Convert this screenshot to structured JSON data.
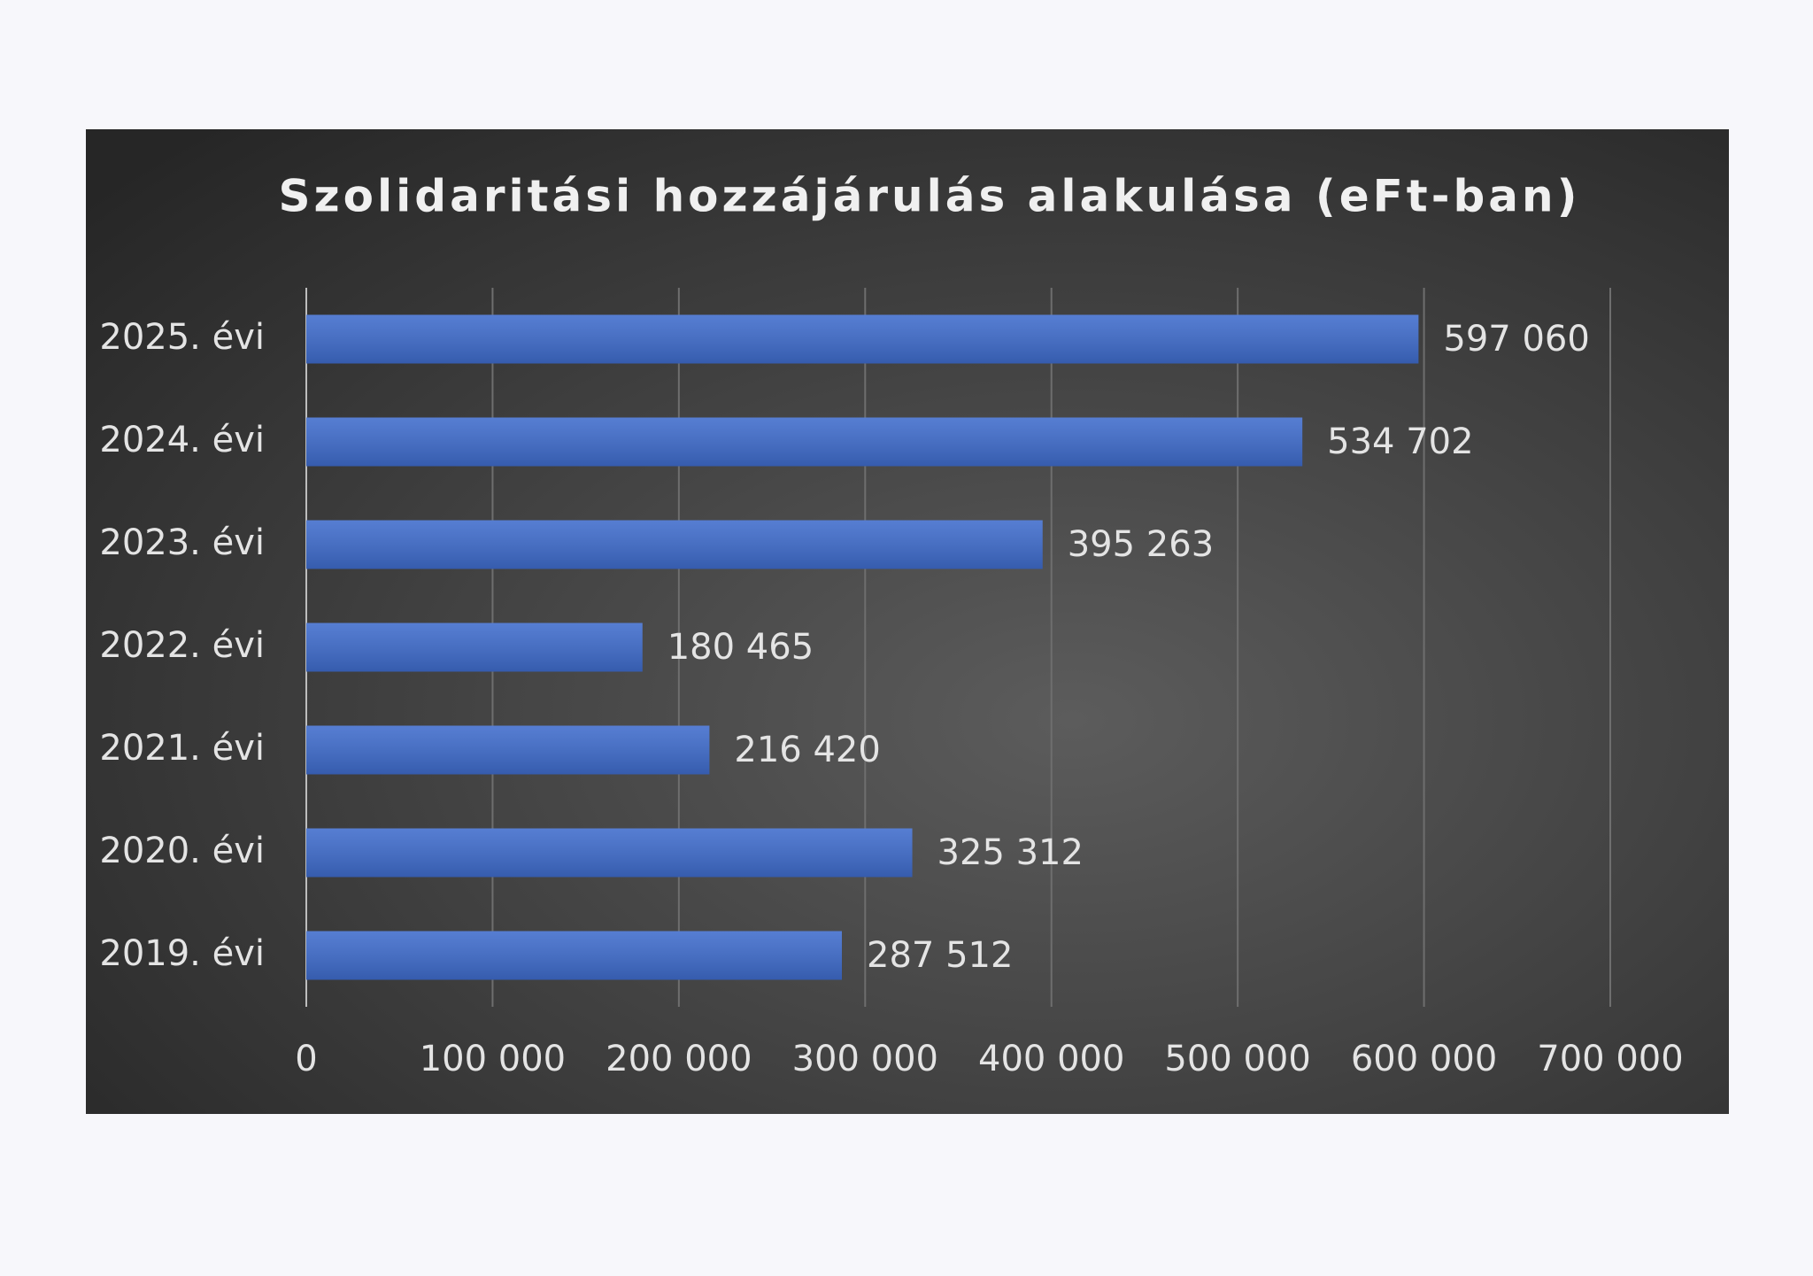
{
  "chart_data": {
    "type": "bar",
    "orientation": "horizontal",
    "title": "Szolidaritási hozzájárulás alakulása (eFt-ban)",
    "categories": [
      "2025. évi",
      "2024. évi",
      "2023. évi",
      "2022. évi",
      "2021. évi",
      "2020. évi",
      "2019. évi"
    ],
    "values": [
      597060,
      534702,
      395263,
      180465,
      216420,
      325312,
      287512
    ],
    "value_labels": [
      "597 060",
      "534 702",
      "395 263",
      "180 465",
      "216 420",
      "325 312",
      "287 512"
    ],
    "color": "#3f6ccc",
    "xlim": [
      0,
      700000
    ],
    "xticks": [
      0,
      {
        "value": 100000,
        "label": "100 000"
      },
      {
        "value": 200000,
        "label": "200 000"
      },
      {
        "value": 300000,
        "label": "300 000"
      },
      {
        "value": 400000,
        "label": "400 000"
      },
      {
        "value": 500000,
        "label": "500 000"
      },
      {
        "value": 600000,
        "label": "600 000"
      },
      {
        "value": 700000,
        "label": "700 000"
      }
    ],
    "grid": true
  }
}
